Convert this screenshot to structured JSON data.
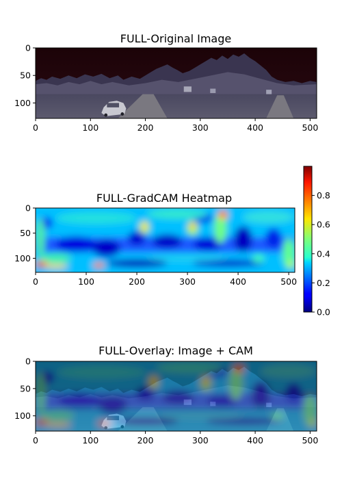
{
  "chart_data": [
    {
      "type": "image",
      "title": "FULL-Original Image",
      "xlim": [
        0,
        512
      ],
      "ylim": [
        128,
        0
      ],
      "xticks": [
        0,
        100,
        200,
        300,
        400,
        500
      ],
      "yticks": [
        0,
        50,
        100
      ],
      "content": "panoramic photo of road and trees, silver car on left side"
    },
    {
      "type": "heatmap",
      "title": "FULL-GradCAM Heatmap",
      "xlim": [
        0,
        512
      ],
      "ylim": [
        128,
        0
      ],
      "xticks": [
        0,
        100,
        200,
        300,
        400,
        500
      ],
      "yticks": [
        0,
        50,
        100
      ],
      "colormap": "jet",
      "colorbar": {
        "range": [
          0.0,
          1.0
        ],
        "ticks": [
          0.0,
          0.2,
          0.4,
          0.6,
          0.8
        ],
        "tick_labels": [
          "0.0",
          "0.2",
          "0.4",
          "0.6",
          "0.8"
        ]
      }
    },
    {
      "type": "heatmap",
      "title": "FULL-Overlay: Image + CAM",
      "xlim": [
        0,
        512
      ],
      "ylim": [
        128,
        0
      ],
      "xticks": [
        0,
        100,
        200,
        300,
        400,
        500
      ],
      "yticks": [
        0,
        50,
        100
      ],
      "colormap": "jet",
      "overlay_alpha": 0.5
    }
  ]
}
